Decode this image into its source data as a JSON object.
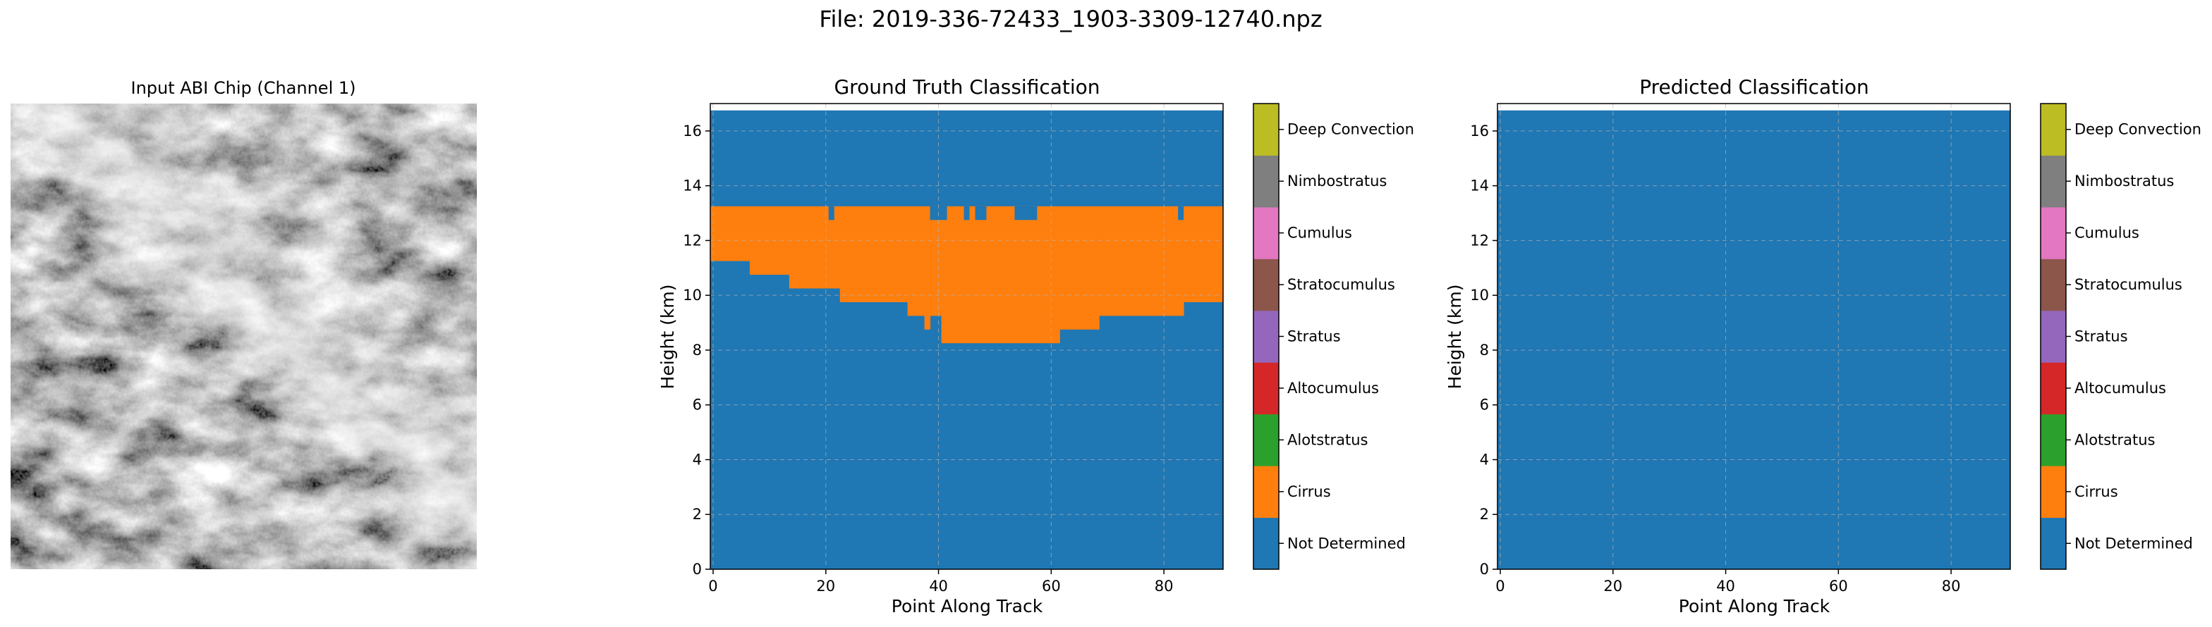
{
  "figure_title": "File: 2019-336-72433_1903-3309-12740.npz",
  "chart_data": [
    {
      "type": "image",
      "title": "Input ABI Chip (Channel 1)",
      "colormap": "gray"
    },
    {
      "type": "heatmap",
      "title": "Ground Truth Classification",
      "xlabel": "Point Along Track",
      "ylabel": "Height (km)",
      "xlim": [
        -0.5,
        90.5
      ],
      "ylim": [
        0,
        17
      ],
      "xticks": [
        0,
        20,
        40,
        60,
        80
      ],
      "yticks": [
        0,
        2,
        4,
        6,
        8,
        10,
        12,
        14,
        16
      ],
      "grid": true,
      "data_top_km": 16.75,
      "cirrus_top_km": 13.25,
      "cirrus_top_gaps": [
        {
          "x0": 21,
          "x1": 22,
          "top": 12.75
        },
        {
          "x0": 39,
          "x1": 42,
          "top": 12.75
        },
        {
          "x0": 45,
          "x1": 46,
          "top": 12.75
        },
        {
          "x0": 47,
          "x1": 49,
          "top": 12.75
        },
        {
          "x0": 54,
          "x1": 58,
          "top": 12.75
        },
        {
          "x0": 83,
          "x1": 84,
          "top": 12.75
        }
      ],
      "cirrus_base": [
        {
          "x0": 0,
          "x1": 7,
          "base": 11.25
        },
        {
          "x0": 7,
          "x1": 14,
          "base": 10.75
        },
        {
          "x0": 14,
          "x1": 23,
          "base": 10.25
        },
        {
          "x0": 23,
          "x1": 35,
          "base": 9.75
        },
        {
          "x0": 35,
          "x1": 38,
          "base": 9.25
        },
        {
          "x0": 38,
          "x1": 39,
          "base": 8.75
        },
        {
          "x0": 39,
          "x1": 41,
          "base": 9.25
        },
        {
          "x0": 41,
          "x1": 62,
          "base": 8.25
        },
        {
          "x0": 62,
          "x1": 69,
          "base": 8.75
        },
        {
          "x0": 69,
          "x1": 84,
          "base": 9.25
        },
        {
          "x0": 84,
          "x1": 91,
          "base": 9.75
        }
      ],
      "colorbar": [
        "Not Determined",
        "Cirrus",
        "Alotstratus",
        "Altocumulus",
        "Stratus",
        "Stratocumulus",
        "Cumulus",
        "Nimbostratus",
        "Deep Convection"
      ]
    },
    {
      "type": "heatmap",
      "title": "Predicted Classification",
      "xlabel": "Point Along Track",
      "ylabel": "Height (km)",
      "xlim": [
        -0.5,
        90.5
      ],
      "ylim": [
        0,
        17
      ],
      "xticks": [
        0,
        20,
        40,
        60,
        80
      ],
      "yticks": [
        0,
        2,
        4,
        6,
        8,
        10,
        12,
        14,
        16
      ],
      "grid": true,
      "data_top_km": 16.75,
      "colorbar": [
        "Not Determined",
        "Cirrus",
        "Alotstratus",
        "Altocumulus",
        "Stratus",
        "Stratocumulus",
        "Cumulus",
        "Nimbostratus",
        "Deep Convection"
      ]
    }
  ],
  "class_colors": [
    "#1f77b4",
    "#ff7f0e",
    "#2ca02c",
    "#d62728",
    "#9467bd",
    "#8c564b",
    "#e377c2",
    "#7f7f7f",
    "#bcbd22",
    "#17becf"
  ]
}
